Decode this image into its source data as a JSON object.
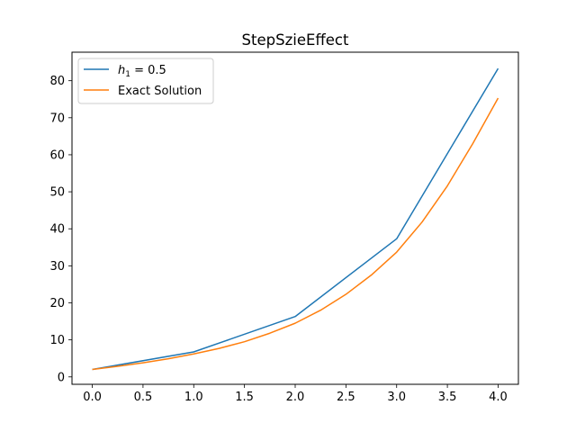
{
  "chart_data": {
    "type": "line",
    "title": "StepSzieEffect",
    "xlabel": "",
    "ylabel": "",
    "xlim": [
      -0.2,
      4.2
    ],
    "ylim": [
      -2,
      87.7
    ],
    "xticks": [
      0.0,
      0.5,
      1.0,
      1.5,
      2.0,
      2.5,
      3.0,
      3.5,
      4.0
    ],
    "xtick_labels": [
      "0.0",
      "0.5",
      "1.0",
      "1.5",
      "2.0",
      "2.5",
      "3.0",
      "3.5",
      "4.0"
    ],
    "yticks": [
      0,
      10,
      20,
      30,
      40,
      50,
      60,
      70,
      80
    ],
    "ytick_labels": [
      "0",
      "10",
      "20",
      "30",
      "40",
      "50",
      "60",
      "70",
      "80"
    ],
    "grid": false,
    "legend_position": "upper-left",
    "series": [
      {
        "name": "h_1 = 0.5",
        "legend_main": "h",
        "legend_sub": "1",
        "legend_rest": " = 0.5",
        "color": "#1f77b4",
        "x": [
          0,
          1,
          2,
          3,
          4
        ],
        "y": [
          2.0,
          6.75,
          16.3,
          37.3,
          83.3
        ]
      },
      {
        "name": "Exact Solution",
        "color": "#ff7f0e",
        "x": [
          0,
          0.25,
          0.5,
          0.75,
          1.0,
          1.25,
          1.5,
          1.75,
          2.0,
          2.25,
          2.5,
          2.75,
          3.0,
          3.25,
          3.5,
          3.75,
          4.0
        ],
        "y": [
          2.0,
          2.85,
          3.8,
          4.9,
          6.2,
          7.7,
          9.5,
          11.8,
          14.5,
          18.0,
          22.3,
          27.5,
          33.7,
          41.8,
          51.6,
          63.0,
          75.3
        ]
      }
    ]
  }
}
